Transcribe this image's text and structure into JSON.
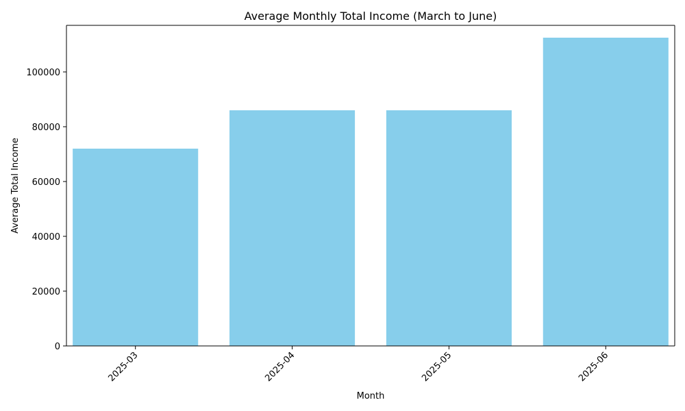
{
  "chart_data": {
    "type": "bar",
    "title": "Average Monthly Total Income (March to June)",
    "xlabel": "Month",
    "ylabel": "Average Total Income",
    "categories": [
      "2025-03",
      "2025-04",
      "2025-05",
      "2025-06"
    ],
    "values": [
      72000,
      86000,
      86000,
      112500
    ],
    "ylim": [
      0,
      117000
    ],
    "yticks": [
      0,
      20000,
      40000,
      60000,
      80000,
      100000
    ],
    "ytick_labels": [
      "0",
      "20000",
      "40000",
      "60000",
      "80000",
      "100000"
    ],
    "x_tick_rotation_deg": 45,
    "bar_color": "#87ceeb",
    "grid": false,
    "legend": "none"
  }
}
